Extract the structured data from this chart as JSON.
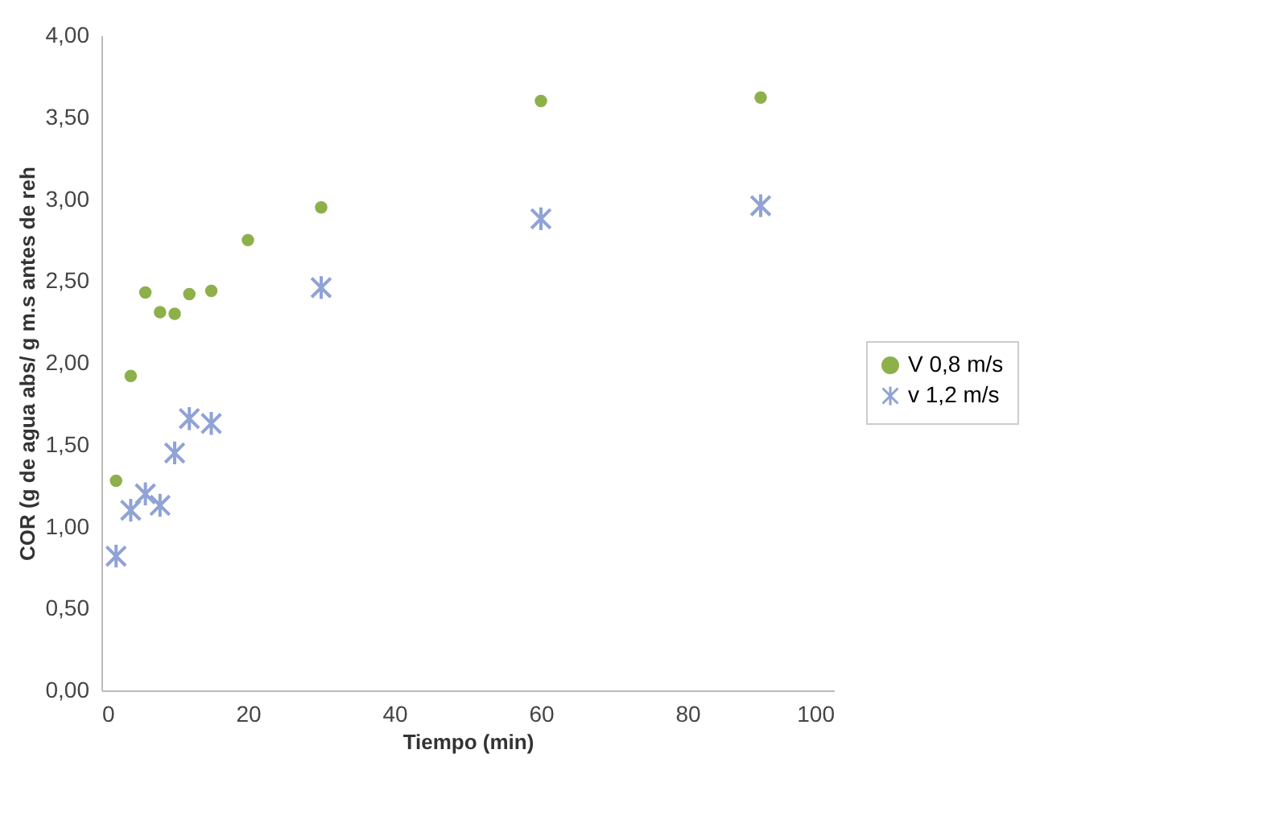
{
  "chart_data": {
    "type": "scatter",
    "xlabel": "Tiempo (min)",
    "ylabel": "COR (g de agua abs/ g m.s antes de reh",
    "xlim": [
      0,
      100
    ],
    "xticks": [
      0,
      20,
      40,
      60,
      80,
      100
    ],
    "ylim": [
      0,
      4
    ],
    "yticks": [
      {
        "value": 0,
        "label": "0,00"
      },
      {
        "value": 0.5,
        "label": "0,50"
      },
      {
        "value": 1,
        "label": "1,00"
      },
      {
        "value": 1.5,
        "label": "1,50"
      },
      {
        "value": 2,
        "label": "2,00"
      },
      {
        "value": 2.5,
        "label": "2,50"
      },
      {
        "value": 3,
        "label": "3,00"
      },
      {
        "value": 3.5,
        "label": "3,50"
      },
      {
        "value": 4,
        "label": "4,00"
      }
    ],
    "grid": false,
    "legend": "right",
    "series": [
      {
        "name": "V 0,8 m/s",
        "color": "#8db04a",
        "marker": "circle",
        "x": [
          2,
          4,
          6,
          8,
          10,
          12,
          15,
          20,
          30,
          60,
          90
        ],
        "values": [
          1.28,
          1.92,
          2.43,
          2.31,
          2.3,
          2.42,
          2.44,
          2.75,
          2.95,
          3.6,
          3.62
        ]
      },
      {
        "name": "v 1,2 m/s",
        "color": "#8fa3d6",
        "marker": "cross",
        "x": [
          2,
          4,
          6,
          8,
          10,
          12,
          15,
          30,
          60,
          90
        ],
        "values": [
          0.82,
          1.1,
          1.2,
          1.13,
          1.45,
          1.66,
          1.63,
          2.46,
          2.88,
          2.96
        ]
      }
    ]
  }
}
